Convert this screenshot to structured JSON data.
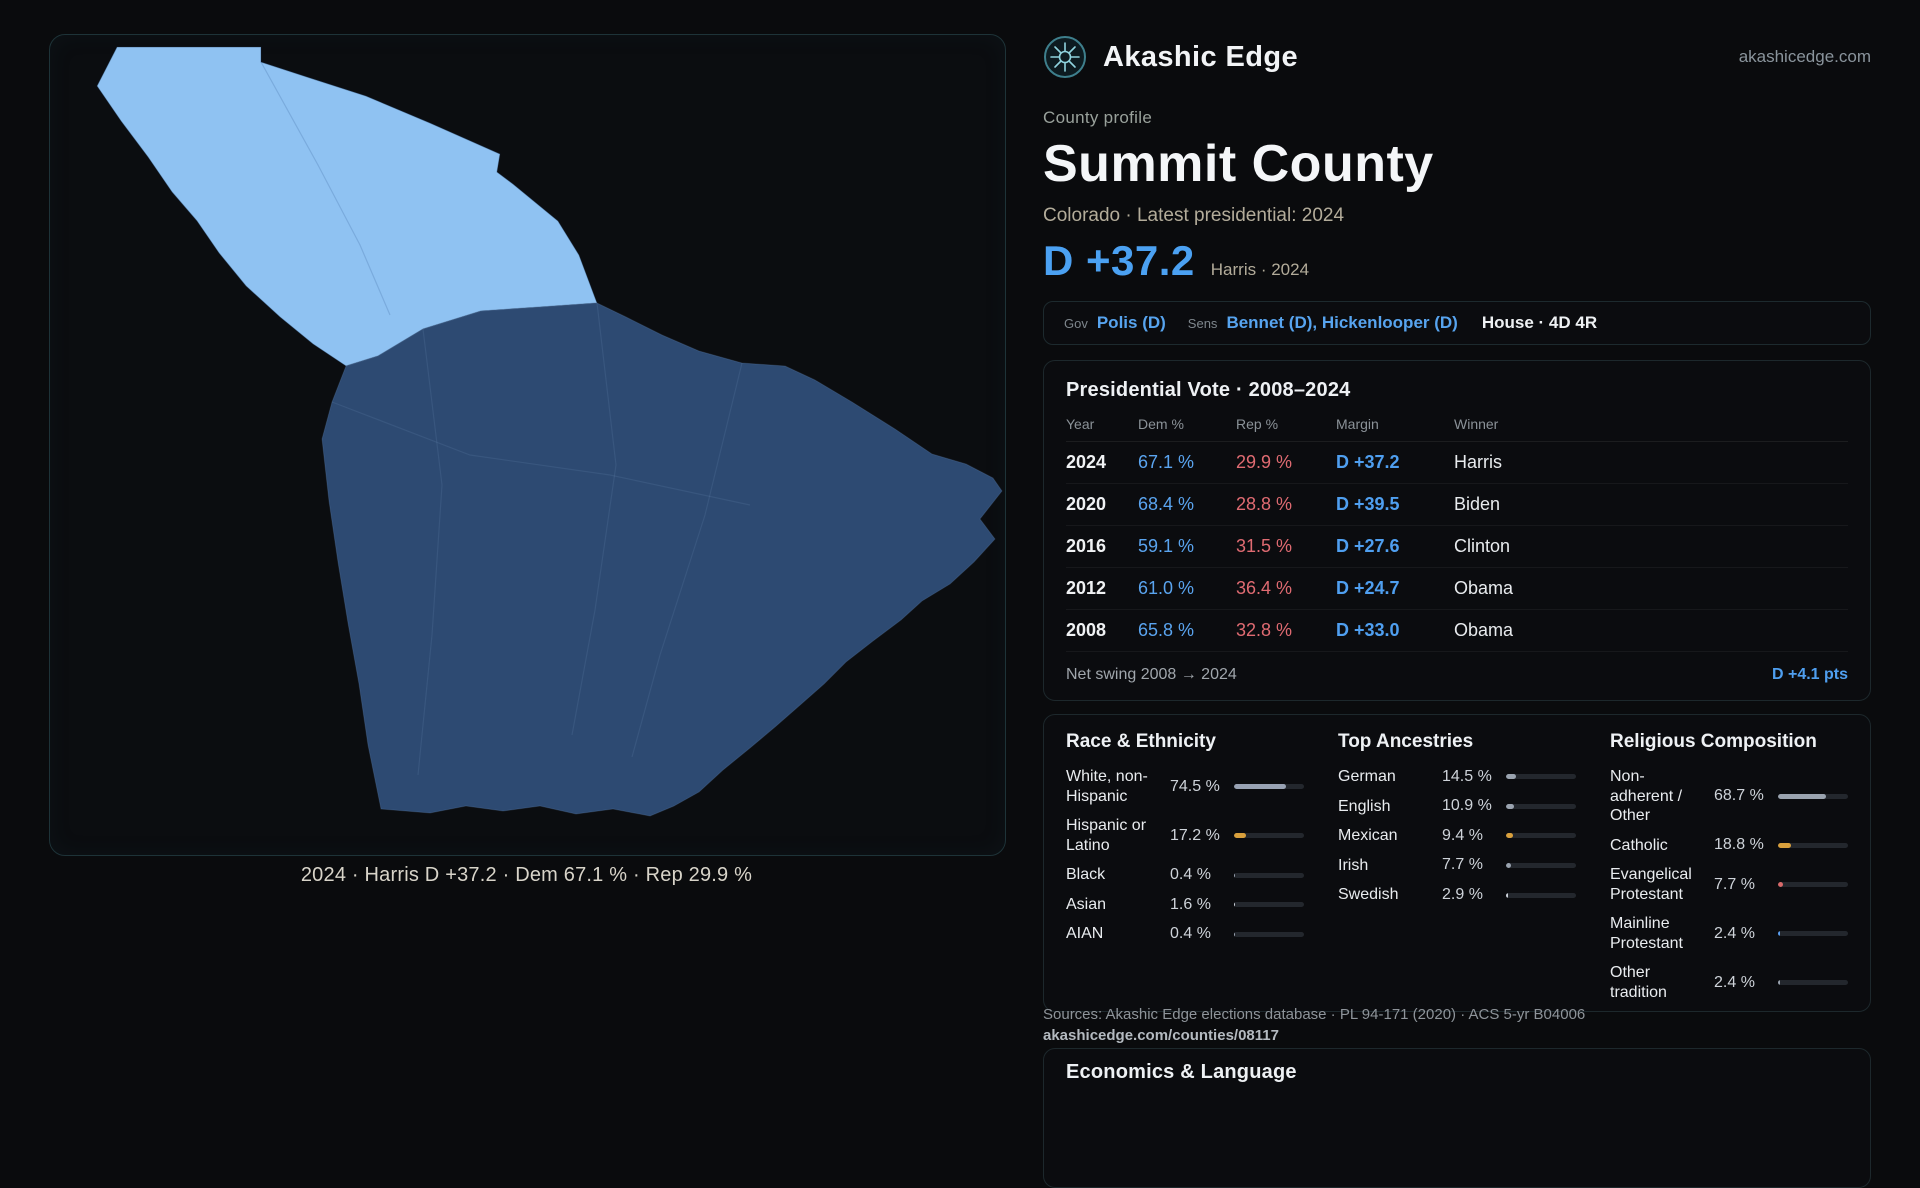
{
  "site": {
    "brand": "Akashic Edge",
    "domain": "akashicedge.com"
  },
  "map": {
    "caption": "2024 · Harris D +37.2 · Dem 67.1 % · Rep 29.9 %",
    "colors": {
      "light": "#8fc2f2",
      "dark": "#2d4a72"
    }
  },
  "header": {
    "eyebrow": "County profile",
    "title": "Summit County",
    "subtitle": "Colorado · Latest presidential: 2024",
    "margin_big": "D +37.2",
    "margin_note": "Harris · 2024"
  },
  "officials": {
    "gov_label": "Gov",
    "gov": "Polis (D)",
    "sens_label": "Sens",
    "sens": "Bennet (D), Hickenlooper (D)",
    "house": "House · 4D 4R"
  },
  "presidential": {
    "title": "Presidential Vote · 2008–2024",
    "columns": [
      "Year",
      "Dem %",
      "Rep %",
      "Margin",
      "Winner"
    ],
    "rows": [
      {
        "year": "2024",
        "dem": "67.1 %",
        "rep": "29.9 %",
        "margin": "D +37.2",
        "winner": "Harris"
      },
      {
        "year": "2020",
        "dem": "68.4 %",
        "rep": "28.8 %",
        "margin": "D +39.5",
        "winner": "Biden"
      },
      {
        "year": "2016",
        "dem": "59.1 %",
        "rep": "31.5 %",
        "margin": "D +27.6",
        "winner": "Clinton"
      },
      {
        "year": "2012",
        "dem": "61.0 %",
        "rep": "36.4 %",
        "margin": "D +24.7",
        "winner": "Obama"
      },
      {
        "year": "2008",
        "dem": "65.8 %",
        "rep": "32.8 %",
        "margin": "D +33.0",
        "winner": "Obama"
      }
    ],
    "net_swing_label": "Net swing 2008 → 2024",
    "net_swing_value": "D +4.1 pts"
  },
  "demographics": {
    "race": {
      "title": "Race & Ethnicity",
      "rows": [
        {
          "label": "White, non-Hispanic",
          "value": "74.5 %",
          "pct": 74.5,
          "color": "#98a2b3"
        },
        {
          "label": "Hispanic or Latino",
          "value": "17.2 %",
          "pct": 17.2,
          "color": "#d9a03c"
        },
        {
          "label": "Black",
          "value": "0.4 %",
          "pct": 0.4,
          "color": "#9aa3af"
        },
        {
          "label": "Asian",
          "value": "1.6 %",
          "pct": 1.6,
          "color": "#cdd3da"
        },
        {
          "label": "AIAN",
          "value": "0.4 %",
          "pct": 0.4,
          "color": "#9aa3af"
        }
      ]
    },
    "ancestries": {
      "title": "Top Ancestries",
      "rows": [
        {
          "label": "German",
          "value": "14.5 %",
          "pct": 14.5,
          "color": "#9aa3af"
        },
        {
          "label": "English",
          "value": "10.9 %",
          "pct": 10.9,
          "color": "#9aa3af"
        },
        {
          "label": "Mexican",
          "value": "9.4 %",
          "pct": 9.4,
          "color": "#d9a03c"
        },
        {
          "label": "Irish",
          "value": "7.7 %",
          "pct": 7.7,
          "color": "#9aa3af"
        },
        {
          "label": "Swedish",
          "value": "2.9 %",
          "pct": 2.9,
          "color": "#cdd3da"
        }
      ]
    },
    "religion": {
      "title": "Religious Composition",
      "rows": [
        {
          "label": "Non-adherent / Other",
          "value": "68.7 %",
          "pct": 68.7,
          "color": "#9aa3af"
        },
        {
          "label": "Catholic",
          "value": "18.8 %",
          "pct": 18.8,
          "color": "#d9a03c"
        },
        {
          "label": "Evangelical Protestant",
          "value": "7.7 %",
          "pct": 7.7,
          "color": "#d96a6a"
        },
        {
          "label": "Mainline Protestant",
          "value": "2.4 %",
          "pct": 2.4,
          "color": "#5a9ff0"
        },
        {
          "label": "Other tradition",
          "value": "2.4 %",
          "pct": 2.4,
          "color": "#9aa3af"
        }
      ]
    }
  },
  "sources": {
    "line1": "Sources: Akashic Edge elections database · PL 94-171 (2020) · ACS 5-yr B04006",
    "line2": "akashicedge.com/counties/08117"
  },
  "economics": {
    "title": "Economics & Language"
  }
}
